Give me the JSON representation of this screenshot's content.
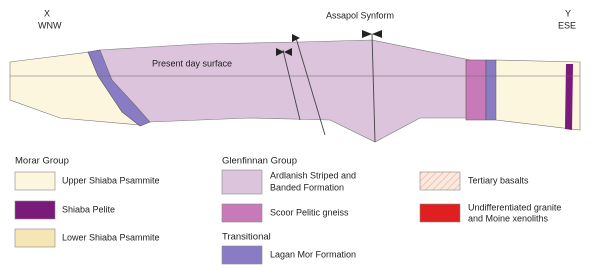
{
  "section": {
    "left_end": {
      "label": "X",
      "direction": "WNW"
    },
    "right_end": {
      "label": "Y",
      "direction": "ESE"
    },
    "fold": "Assapol Synform",
    "surface": "Present day surface"
  },
  "legend": {
    "groups": [
      {
        "title": "Morar Group",
        "items": [
          {
            "label_lines": [
              "Upper Shiaba Psammite"
            ]
          },
          {
            "label_lines": [
              "Shiaba Pelite"
            ]
          },
          {
            "label_lines": [
              "Lower Shiaba Psammite"
            ]
          }
        ]
      },
      {
        "title": "Glenfinnan Group",
        "items": [
          {
            "label_lines": [
              "Ardlanish Striped and",
              "Banded Formation"
            ]
          },
          {
            "label_lines": [
              "Scoor Pelitic gneiss"
            ]
          }
        ]
      },
      {
        "title": "Transitional",
        "items": [
          {
            "label_lines": [
              "Lagan Mor Formation"
            ]
          }
        ]
      },
      {
        "items": [
          {
            "label_lines": [
              "Tertiary basalts"
            ]
          },
          {
            "label_lines": [
              "Undifferentiated granite",
              "and Moine xenoliths"
            ]
          }
        ]
      }
    ]
  }
}
